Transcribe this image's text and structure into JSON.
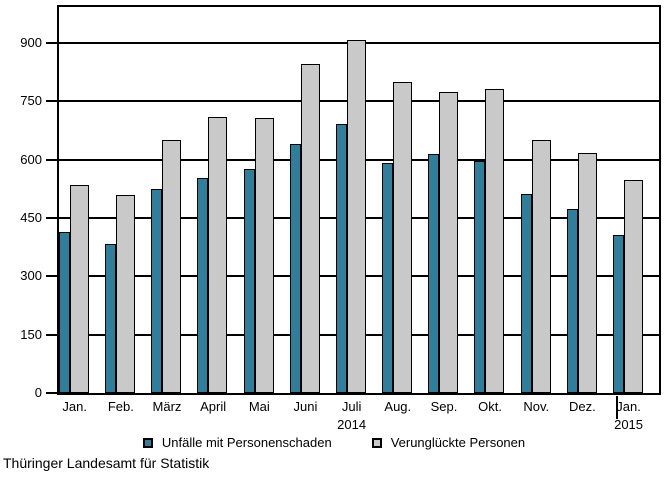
{
  "source_label": "Thüringer Landesamt für Statistik",
  "chart_data": {
    "type": "bar",
    "title": "",
    "xlabel": "",
    "ylabel": "",
    "categories": [
      "Jan.",
      "Feb.",
      "März",
      "April",
      "Mai",
      "Juni",
      "Juli",
      "Aug.",
      "Sep.",
      "Okt.",
      "Nov.",
      "Dez.",
      "Jan."
    ],
    "year_annotations": [
      {
        "category_index": 6,
        "label": "2014"
      },
      {
        "category_index": 12,
        "label": "2015"
      }
    ],
    "series": [
      {
        "name": "Unfälle mit Personenschaden",
        "color": "#2f7f9c",
        "values": [
          414,
          384,
          525,
          553,
          576,
          641,
          691,
          592,
          614,
          597,
          512,
          474,
          405
        ]
      },
      {
        "name": "Verunglückte Personen",
        "color": "#c9c9c9",
        "values": [
          535,
          509,
          649,
          709,
          707,
          846,
          908,
          799,
          774,
          782,
          651,
          616,
          548
        ]
      }
    ],
    "y_ticks": [
      0,
      150,
      300,
      450,
      600,
      750,
      900
    ],
    "ylim": [
      0,
      992
    ],
    "grid": "horizontal",
    "legend_position": "bottom",
    "axis_color": "#000000",
    "background_color": "#ffffff"
  }
}
